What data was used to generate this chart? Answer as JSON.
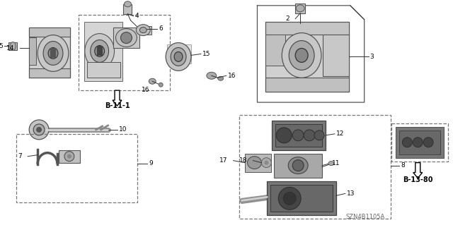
{
  "bg_color": "#ffffff",
  "watermark": "SZN4B1105A",
  "lc": "#333333",
  "ec_dark": "#555555",
  "ec_darker": "#444444",
  "fc_light": "#d0d0d0",
  "fc_mid": "#aaaaaa",
  "fc_dark": "#888888",
  "fc_darker": "#666666",
  "dash_ec": "#777777"
}
